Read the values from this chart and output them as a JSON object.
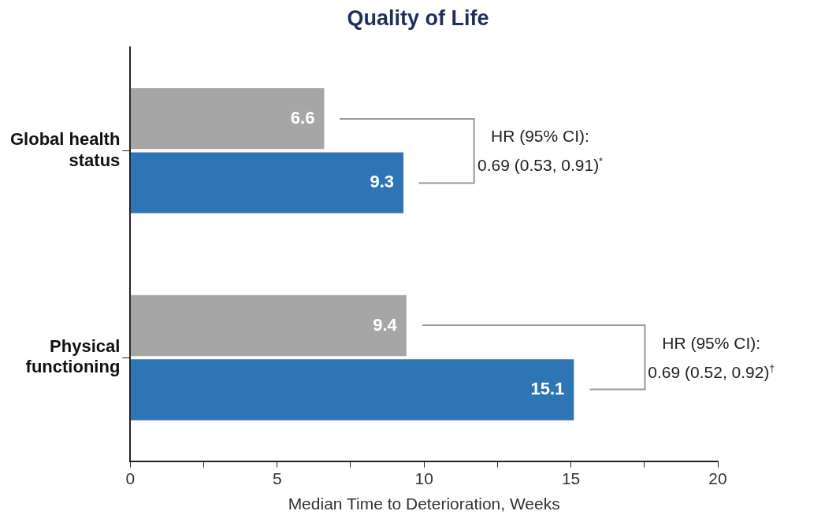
{
  "chart_data": {
    "type": "bar",
    "orientation": "horizontal",
    "title": "Quality of Life",
    "xlabel": "Median Time to Deterioration, Weeks",
    "categories": [
      "Global health\nstatus",
      "Physical\nfunctioning"
    ],
    "series": [
      {
        "color": "#a6a6a6",
        "values": [
          6.6,
          9.4
        ]
      },
      {
        "color": "#2e75b6",
        "values": [
          9.3,
          15.1
        ]
      }
    ],
    "xlim": [
      0,
      20
    ],
    "xticks": [
      0,
      {
        "value": 2.5,
        "label": null
      },
      5,
      {
        "value": 7.5,
        "label": null
      },
      10,
      {
        "value": 12.5,
        "label": null
      },
      15,
      {
        "value": 17.5,
        "label": null
      },
      20
    ],
    "grid": false,
    "legend": false,
    "data_labels": true,
    "annotations": [
      "HR (95% CI):\n0.69 (0.53, 0.91)$^{*}$",
      "HR (95% CI):\n0.69 (0.52, 0.92)$^{†}$"
    ]
  }
}
